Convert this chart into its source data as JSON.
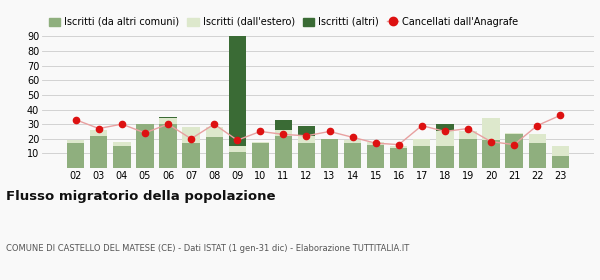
{
  "years": [
    "02",
    "03",
    "04",
    "05",
    "06",
    "07",
    "08",
    "09",
    "10",
    "11",
    "12",
    "13",
    "14",
    "15",
    "16",
    "17",
    "18",
    "19",
    "20",
    "21",
    "22",
    "23"
  ],
  "iscritti_altri_comuni": [
    17,
    22,
    15,
    30,
    30,
    17,
    21,
    11,
    17,
    22,
    17,
    20,
    17,
    16,
    14,
    15,
    15,
    20,
    19,
    23,
    17,
    8
  ],
  "iscritti_estero": [
    2,
    4,
    3,
    0,
    4,
    11,
    7,
    4,
    1,
    4,
    5,
    0,
    2,
    2,
    1,
    5,
    10,
    5,
    15,
    1,
    6,
    7
  ],
  "iscritti_altri": [
    0,
    0,
    0,
    0,
    1,
    0,
    0,
    83,
    0,
    7,
    7,
    0,
    0,
    0,
    0,
    0,
    5,
    0,
    0,
    0,
    0,
    0
  ],
  "cancellati": [
    33,
    27,
    30,
    24,
    30,
    20,
    30,
    19,
    25,
    23,
    22,
    25,
    21,
    17,
    16,
    29,
    25,
    27,
    18,
    16,
    29,
    36
  ],
  "color_altri_comuni": "#8faf7e",
  "color_estero": "#dde8cc",
  "color_altri": "#3a6b35",
  "color_cancellati_line": "#e8a0a0",
  "color_cancellati_dot": "#dd1111",
  "ylim": [
    0,
    90
  ],
  "yticks": [
    10,
    20,
    30,
    40,
    50,
    60,
    70,
    80,
    90
  ],
  "title": "Flusso migratorio della popolazione",
  "subtitle": "COMUNE DI CASTELLO DEL MATESE (CE) - Dati ISTAT (1 gen-31 dic) - Elaborazione TUTTITALIA.IT",
  "legend_labels": [
    "Iscritti (da altri comuni)",
    "Iscritti (dall'estero)",
    "Iscritti (altri)",
    "Cancellati dall'Anagrafe"
  ],
  "background_color": "#f9f9f9",
  "grid_color": "#cccccc"
}
